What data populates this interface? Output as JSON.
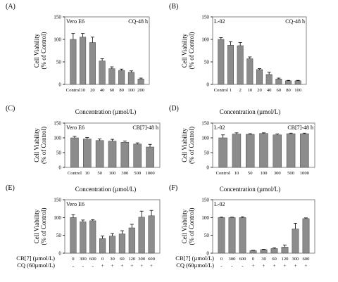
{
  "chart_data": [
    {
      "panel": "(A)",
      "type": "bar",
      "cell_line": "Vero E6",
      "condition": "CQ-48 h",
      "ylabel": [
        "Cell Viability",
        "(% of Control)"
      ],
      "xlabel": "Concentration (µmol/L)",
      "ylim": [
        0,
        150
      ],
      "yticks": [
        0,
        50,
        100,
        150
      ],
      "categories": [
        "Control",
        "10",
        "20",
        "40",
        "60",
        "80",
        "100",
        "200"
      ],
      "values": [
        100,
        105,
        93,
        52,
        35,
        31,
        27,
        12
      ],
      "errors": [
        13,
        8,
        12,
        5,
        4,
        3,
        3,
        2
      ]
    },
    {
      "panel": "(B)",
      "type": "bar",
      "cell_line": "L-02",
      "condition": "CQ-48 h",
      "ylabel": [
        "Cell Viability",
        "(% of Control)"
      ],
      "xlabel": "Concentration (µmol/L)",
      "ylim": [
        0,
        150
      ],
      "yticks": [
        0,
        50,
        100,
        150
      ],
      "categories": [
        "Control",
        "1",
        "2",
        "10",
        "20",
        "40",
        "60",
        "80",
        "100"
      ],
      "values": [
        100,
        87,
        86,
        57,
        33,
        22,
        12,
        8,
        8
      ],
      "errors": [
        4,
        8,
        7,
        4,
        2,
        5,
        2,
        1,
        1
      ]
    },
    {
      "panel": "(C)",
      "type": "bar",
      "cell_line": "Vero E6",
      "condition": "CB[7]-48 h",
      "ylabel": [
        "Cell Viability",
        "(% of Control)"
      ],
      "xlabel": "Concentration (µmol/L)",
      "ylim": [
        0,
        150
      ],
      "yticks": [
        0,
        50,
        100,
        150
      ],
      "categories": [
        "Control",
        "10",
        "50",
        "100",
        "300",
        "500",
        "1000"
      ],
      "values": [
        100,
        96,
        91,
        89,
        85,
        79,
        69
      ],
      "errors": [
        5,
        5,
        5,
        6,
        4,
        4,
        9
      ]
    },
    {
      "panel": "(D)",
      "type": "bar",
      "cell_line": "L-02",
      "condition": "CB[7]-48 h",
      "ylabel": [
        "Cell Viability",
        "(% of Control)"
      ],
      "xlabel": "Concentration (µmol/L)",
      "ylim": [
        0,
        150
      ],
      "yticks": [
        0,
        50,
        100,
        150
      ],
      "categories": [
        "Control",
        "10",
        "50",
        "100",
        "300",
        "500",
        "1000"
      ],
      "values": [
        100,
        113,
        112,
        115,
        110,
        114,
        114
      ],
      "errors": [
        10,
        4,
        2,
        2,
        3,
        2,
        2
      ]
    },
    {
      "panel": "(E)",
      "type": "bar",
      "cell_line": "Vero E6",
      "condition": "",
      "ylabel": [
        "Cell Viability",
        "(% of Control)"
      ],
      "ylim": [
        0,
        150
      ],
      "yticks": [
        0,
        50,
        100,
        150
      ],
      "row_labels": [
        "CB[7] (µmol/L)",
        "CQ (60µmol/L)"
      ],
      "cb7": [
        "0",
        "300",
        "600",
        "0",
        "30",
        "60",
        "120",
        "300",
        "600"
      ],
      "cq": [
        "-",
        "-",
        "-",
        "+",
        "+",
        "+",
        "+",
        "+",
        "+"
      ],
      "values": [
        100,
        88,
        91,
        41,
        48,
        54,
        71,
        101,
        105
      ],
      "errors": [
        8,
        5,
        3,
        7,
        7,
        9,
        10,
        17,
        15
      ]
    },
    {
      "panel": "(F)",
      "type": "bar",
      "cell_line": "L-02",
      "condition": "",
      "ylabel": [
        "Cell Viability",
        "(% of Control)"
      ],
      "ylim": [
        0,
        150
      ],
      "yticks": [
        0,
        50,
        100,
        150
      ],
      "row_labels": [
        "CB[7] (µmol/L)",
        "CQ (60µmol/L)"
      ],
      "cb7": [
        "0",
        "300",
        "600",
        "0",
        "30",
        "60",
        "120",
        "300",
        "600"
      ],
      "cq": [
        "-",
        "-",
        "-",
        "+",
        "+",
        "+",
        "+",
        "+",
        "+"
      ],
      "values": [
        100,
        100,
        100,
        7,
        10,
        13,
        17,
        68,
        97
      ],
      "errors": [
        1,
        1,
        2,
        1,
        1,
        2,
        6,
        16,
        2
      ]
    }
  ],
  "colors": {
    "bar": "#8c8c8c",
    "axis": "#000000",
    "frame": "#666666"
  }
}
